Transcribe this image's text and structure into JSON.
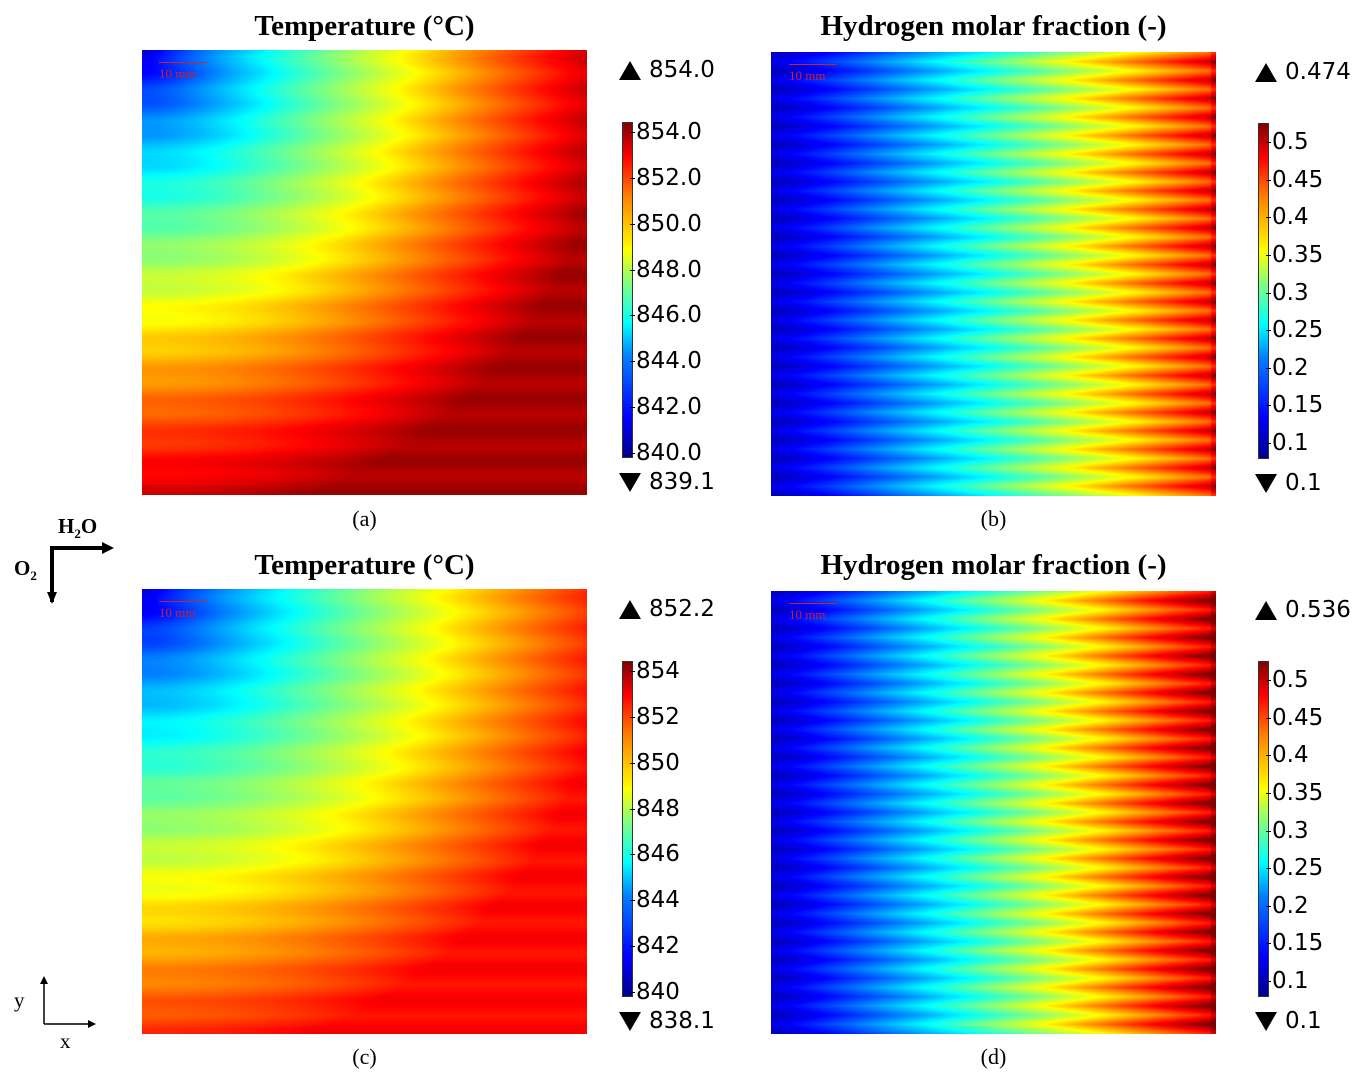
{
  "chart_data": [
    {
      "type": "heatmap",
      "panel": "(a)",
      "title": "Temperature (°C)",
      "scale_bar": "10 mm",
      "max_label": "854.0",
      "min_label": "839.1",
      "colorbar_ticks": [
        "854.0",
        "852.0",
        "850.0",
        "848.0",
        "846.0",
        "844.0",
        "842.0",
        "840.0"
      ],
      "range": [
        839.1,
        854.0
      ],
      "colormap": "jet",
      "pattern": "radial",
      "gain": 1.0
    },
    {
      "type": "heatmap",
      "panel": "(b)",
      "title": "Hydrogen molar fraction (-)",
      "scale_bar": "10 mm",
      "max_label": "0.474",
      "min_label": "0.1",
      "colorbar_ticks": [
        "0.5",
        "0.45",
        "0.4",
        "0.35",
        "0.3",
        "0.25",
        "0.2",
        "0.15",
        "0.1"
      ],
      "range": [
        0.1,
        0.474
      ],
      "colormap": "jet",
      "pattern": "channels",
      "gain": 0.95
    },
    {
      "type": "heatmap",
      "panel": "(c)",
      "title": "Temperature (°C)",
      "scale_bar": "10 mm",
      "max_label": "852.2",
      "min_label": "838.1",
      "colorbar_ticks": [
        "854",
        "852",
        "850",
        "848",
        "846",
        "844",
        "842",
        "840"
      ],
      "range": [
        838.1,
        852.2
      ],
      "colormap": "jet",
      "pattern": "radial",
      "gain": 0.9
    },
    {
      "type": "heatmap",
      "panel": "(d)",
      "title": "Hydrogen molar fraction (-)",
      "scale_bar": "10 mm",
      "max_label": "0.536",
      "min_label": "0.1",
      "colorbar_ticks": [
        "0.5",
        "0.45",
        "0.4",
        "0.35",
        "0.3",
        "0.25",
        "0.2",
        "0.15",
        "0.1"
      ],
      "range": [
        0.1,
        0.536
      ],
      "colormap": "jet",
      "pattern": "channels",
      "gain": 1.05
    }
  ],
  "flow_labels": {
    "h2o": "H",
    "h2o_sub": "2",
    "h2o_tail": "O",
    "o2": "O",
    "o2_sub": "2"
  },
  "axes": {
    "x": "x",
    "y": "y"
  }
}
